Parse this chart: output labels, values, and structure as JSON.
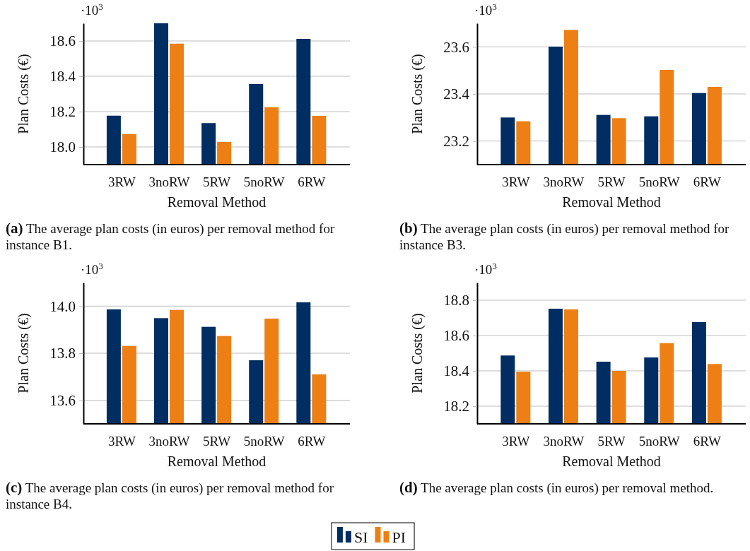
{
  "chart_data": [
    {
      "type": "bar",
      "ylabel": "Plan Costs (€)",
      "xlabel": "Removal Method",
      "categories": [
        "3RW",
        "3noRW",
        "5RW",
        "5noRW",
        "6RW"
      ],
      "series": [
        {
          "name": "SI",
          "color": "#002d62",
          "values": [
            18.177,
            18.7,
            18.135,
            18.356,
            18.612
          ]
        },
        {
          "name": "PI",
          "color": "#ee7f14",
          "values": [
            18.073,
            18.585,
            18.028,
            18.225,
            18.176
          ]
        }
      ],
      "ylim": [
        17.9,
        18.7
      ],
      "yticks": [
        {
          "value": 18,
          "label": "18.0"
        },
        18.2,
        18.4,
        18.6
      ],
      "grid": "y",
      "legend": "bottom",
      "annotations": [
        "·10$^{3}$",
        "(a) The average plan costs (in euros) per removal method for instance B1."
      ]
    },
    {
      "type": "bar",
      "ylabel": "Plan Costs (€)",
      "xlabel": "Removal Method",
      "categories": [
        "3RW",
        "3noRW",
        "5RW",
        "5noRW",
        "6RW"
      ],
      "series": [
        {
          "color": "#002d62",
          "values": [
            23.3,
            23.601,
            23.311,
            23.305,
            23.404
          ]
        },
        {
          "color": "#ee7f14",
          "values": [
            23.284,
            23.672,
            23.297,
            23.502,
            23.43
          ]
        }
      ],
      "ylim": [
        23.1,
        23.7
      ],
      "yticks": [
        23.2,
        23.4,
        23.6
      ],
      "grid": "y",
      "legend": false,
      "annotations": [
        "·10$^{3}$",
        "(b) The average plan costs (in euros) per removal method for instance B3."
      ]
    },
    {
      "type": "bar",
      "ylabel": "Plan Costs (€)",
      "xlabel": "Removal Method",
      "categories": [
        "3RW",
        "3noRW",
        "5RW",
        "5noRW",
        "6RW"
      ],
      "series": [
        {
          "color": "#002d62",
          "values": [
            13.986,
            13.949,
            13.912,
            13.77,
            14.016
          ]
        },
        {
          "color": "#ee7f14",
          "values": [
            13.831,
            13.984,
            13.873,
            13.947,
            13.71
          ]
        }
      ],
      "ylim": [
        13.5,
        14.1
      ],
      "yticks": [
        13.6,
        13.8,
        {
          "value": 14,
          "label": "14.0"
        }
      ],
      "grid": "y",
      "legend": false,
      "annotations": [
        "·10$^{3}$",
        "(c) The average plan costs (in euros) per removal method for instance B4."
      ]
    },
    {
      "type": "bar",
      "ylabel": "Plan Costs (€)",
      "xlabel": "Removal Method",
      "categories": [
        "3RW",
        "3noRW",
        "5RW",
        "5noRW",
        "6RW"
      ],
      "series": [
        {
          "color": "#002d62",
          "values": [
            18.487,
            18.752,
            18.452,
            18.476,
            18.676
          ]
        },
        {
          "color": "#ee7f14",
          "values": [
            18.395,
            18.748,
            18.4,
            18.557,
            18.439
          ]
        }
      ],
      "ylim": [
        18.1,
        18.9
      ],
      "yticks": [
        18.2,
        18.4,
        18.6,
        18.8
      ],
      "grid": "y",
      "legend": false,
      "annotations": [
        "·10$^{3}$",
        "(d) The average plan costs (in euros) per removal method."
      ]
    }
  ]
}
